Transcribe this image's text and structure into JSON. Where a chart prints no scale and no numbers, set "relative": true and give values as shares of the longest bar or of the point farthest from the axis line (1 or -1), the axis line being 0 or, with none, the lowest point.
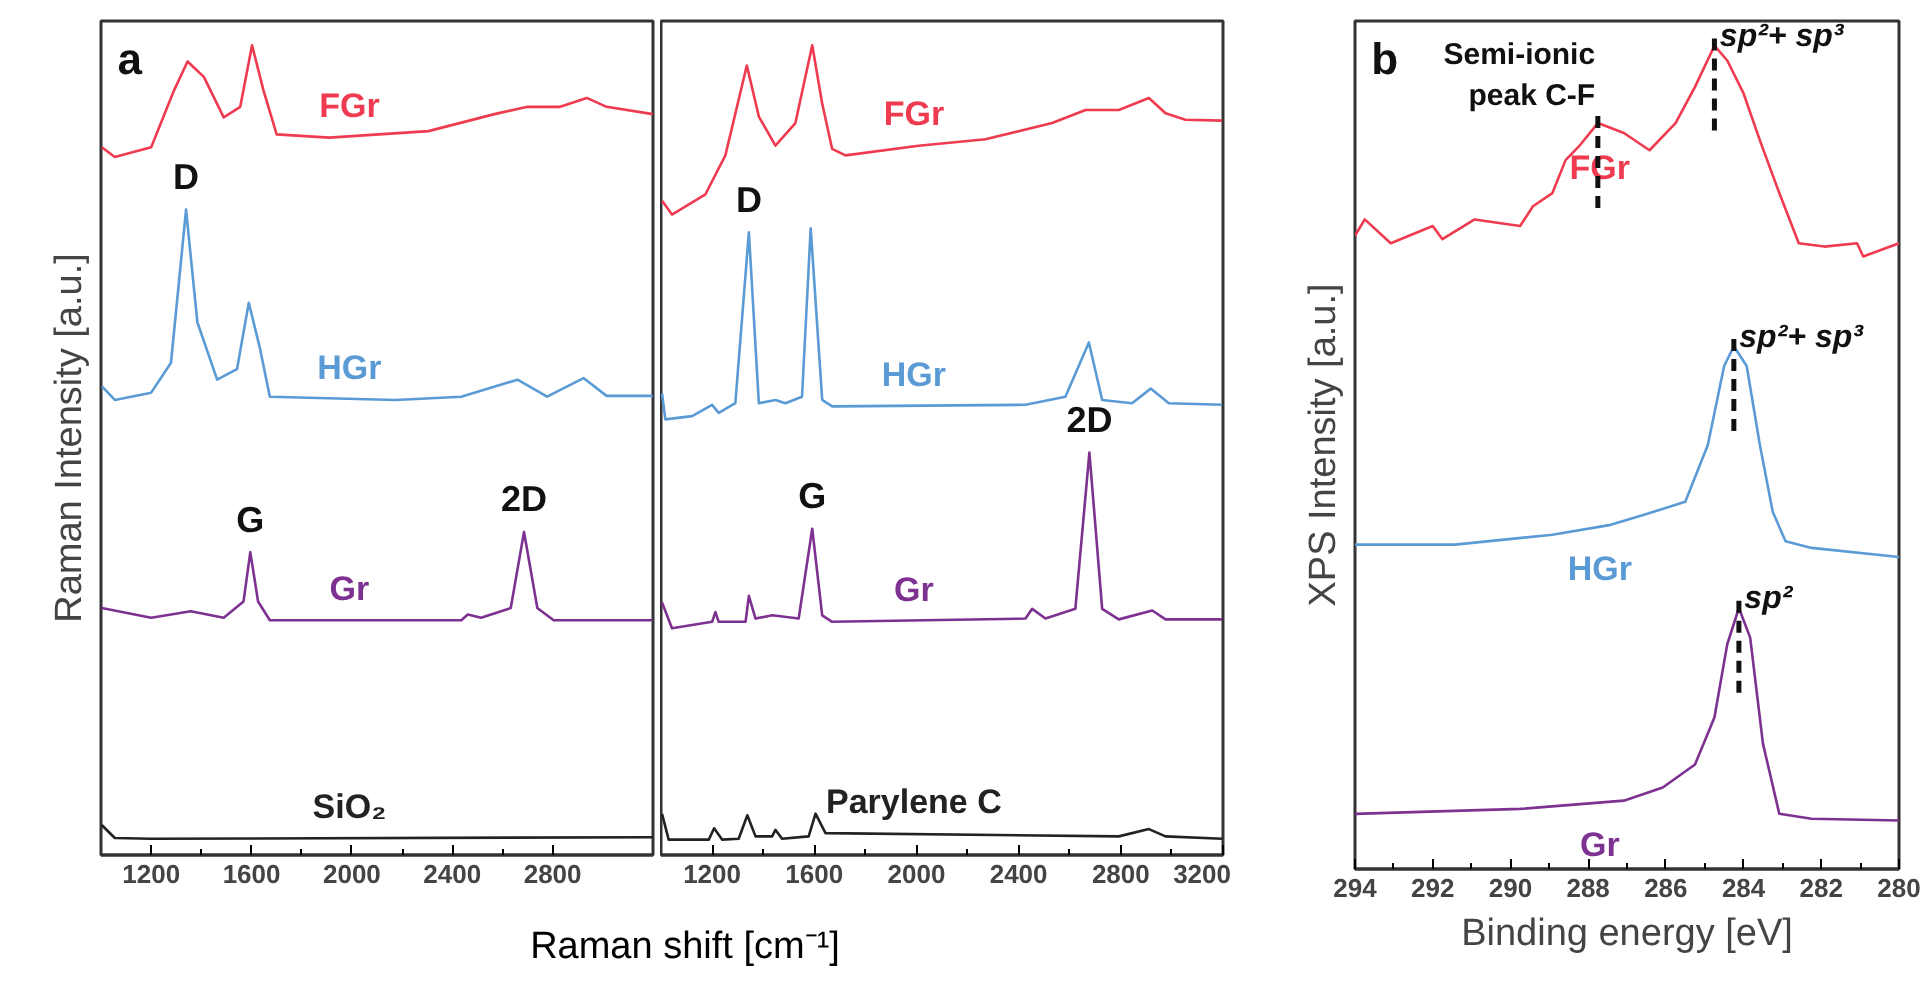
{
  "chart_data": [
    {
      "type": "line",
      "title": "a",
      "ylabel": "Raman Intensity [a.u.]",
      "xlabel": "Raman shift [cm⁻¹]",
      "relative": true,
      "tick_labels": "x",
      "grid": false,
      "xlim": [
        1000,
        3200
      ],
      "xticks": [
        1200,
        1600,
        2000,
        2400,
        2800
      ],
      "series": [
        {
          "name": "FGr",
          "color": "#ee3b4f",
          "x": [
            1003,
            1055,
            1200,
            1292,
            1345,
            1410,
            1489,
            1555,
            1602,
            1647,
            1700,
            1910,
            2305,
            2568,
            2700,
            2830,
            2936,
            3015,
            3199
          ],
          "values": [
            0.874,
            0.862,
            0.874,
            0.945,
            0.98,
            0.961,
            0.911,
            0.924,
            1.0,
            0.945,
            0.89,
            0.886,
            0.894,
            0.915,
            0.924,
            0.924,
            0.935,
            0.924,
            0.915
          ]
        },
        {
          "name": "HGr",
          "color": "#5b9bd5",
          "x": [
            1003,
            1055,
            1200,
            1279,
            1339,
            1384,
            1463,
            1542,
            1589,
            1634,
            1673,
            2173,
            2436,
            2660,
            2778,
            2923,
            3015,
            3199
          ],
          "values": [
            0.579,
            0.562,
            0.571,
            0.608,
            0.797,
            0.658,
            0.587,
            0.6,
            0.682,
            0.625,
            0.566,
            0.562,
            0.566,
            0.587,
            0.566,
            0.589,
            0.567,
            0.567
          ]
        },
        {
          "name": "Gr",
          "color": "#7d3191",
          "x": [
            1003,
            1200,
            1358,
            1489,
            1568,
            1595,
            1626,
            1673,
            2436,
            2462,
            2515,
            2633,
            2686,
            2739,
            2804,
            3199
          ],
          "values": [
            0.305,
            0.293,
            0.301,
            0.293,
            0.313,
            0.374,
            0.313,
            0.29,
            0.29,
            0.297,
            0.293,
            0.305,
            0.399,
            0.305,
            0.29,
            0.29
          ]
        },
        {
          "name": "SiO₂",
          "color": "#222222",
          "x": [
            1003,
            1055,
            1200,
            3199
          ],
          "values": [
            0.037,
            0.021,
            0.02,
            0.022
          ]
        }
      ],
      "annotations": [
        {
          "text": "D",
          "x": 1339,
          "y": 0.797
        },
        {
          "text": "G",
          "x": 1595,
          "y": 0.374
        },
        {
          "text": "2D",
          "x": 2686,
          "y": 0.399
        }
      ]
    },
    {
      "type": "line",
      "relative": true,
      "tick_labels": "x",
      "grid": false,
      "xlim": [
        1000,
        3200
      ],
      "xticks": [
        1200,
        1600,
        2000,
        2400,
        2800,
        3200
      ],
      "series": [
        {
          "name": "FGr",
          "color": "#ee3b4f",
          "x": [
            1004,
            1043,
            1174,
            1252,
            1336,
            1383,
            1448,
            1526,
            1592,
            1631,
            1670,
            1722,
            2009,
            2270,
            2531,
            2662,
            2792,
            2910,
            2975,
            3053,
            3197
          ],
          "values": [
            0.808,
            0.791,
            0.816,
            0.864,
            0.975,
            0.912,
            0.876,
            0.904,
            1.0,
            0.928,
            0.872,
            0.864,
            0.876,
            0.884,
            0.904,
            0.92,
            0.92,
            0.935,
            0.916,
            0.908,
            0.907
          ]
        },
        {
          "name": "HGr",
          "color": "#5b9bd5",
          "x": [
            1004,
            1017,
            1122,
            1200,
            1226,
            1291,
            1344,
            1383,
            1448,
            1487,
            1552,
            1586,
            1631,
            1670,
            2427,
            2583,
            2675,
            2727,
            2844,
            2917,
            2988,
            3197
          ],
          "values": [
            0.57,
            0.538,
            0.542,
            0.556,
            0.546,
            0.558,
            0.769,
            0.558,
            0.562,
            0.558,
            0.566,
            0.774,
            0.562,
            0.554,
            0.556,
            0.566,
            0.633,
            0.562,
            0.558,
            0.576,
            0.558,
            0.556
          ]
        },
        {
          "name": "Gr",
          "color": "#7d3191",
          "x": [
            1004,
            1043,
            1200,
            1213,
            1226,
            1331,
            1344,
            1370,
            1435,
            1539,
            1592,
            1631,
            1670,
            2427,
            2453,
            2505,
            2622,
            2677,
            2727,
            2792,
            2923,
            2975,
            3197
          ],
          "values": [
            0.312,
            0.28,
            0.288,
            0.3,
            0.288,
            0.288,
            0.32,
            0.292,
            0.296,
            0.292,
            0.403,
            0.296,
            0.288,
            0.292,
            0.304,
            0.292,
            0.304,
            0.497,
            0.304,
            0.291,
            0.302,
            0.291,
            0.291
          ]
        },
        {
          "name": "Parylene C",
          "color": "#222222",
          "x": [
            1004,
            1030,
            1187,
            1208,
            1239,
            1304,
            1338,
            1370,
            1435,
            1448,
            1474,
            1578,
            1605,
            1644,
            2792,
            2910,
            2975,
            3197
          ],
          "values": [
            0.051,
            0.019,
            0.019,
            0.033,
            0.019,
            0.02,
            0.049,
            0.023,
            0.023,
            0.031,
            0.02,
            0.023,
            0.051,
            0.027,
            0.023,
            0.032,
            0.023,
            0.02
          ]
        }
      ],
      "annotations": [
        {
          "text": "D",
          "x": 1344,
          "y": 0.769
        },
        {
          "text": "G",
          "x": 1592,
          "y": 0.403
        },
        {
          "text": "2D",
          "x": 2677,
          "y": 0.497
        }
      ]
    },
    {
      "type": "line",
      "title": "b",
      "ylabel": "XPS Intensity [a.u.]",
      "xlabel": "Binding energy [eV]",
      "relative": true,
      "tick_labels": "x",
      "grid": false,
      "xlim": [
        294,
        280
      ],
      "xticks": [
        294,
        292,
        290,
        288,
        286,
        284,
        282,
        280
      ],
      "series": [
        {
          "name": "FGr",
          "color": "#ee3b4f",
          "x": [
            294,
            293.75,
            293.08,
            292,
            291.75,
            290.92,
            289.75,
            289.42,
            288.92,
            288.58,
            288.25,
            287.75,
            287.08,
            286.42,
            285.75,
            285.25,
            284.75,
            284.42,
            284,
            283.58,
            283.08,
            282.58,
            281.92,
            281.08,
            280.92,
            280
          ],
          "values": [
            0.769,
            0.789,
            0.76,
            0.781,
            0.765,
            0.789,
            0.781,
            0.805,
            0.821,
            0.861,
            0.877,
            0.906,
            0.894,
            0.873,
            0.906,
            0.95,
            1.0,
            0.982,
            0.942,
            0.885,
            0.821,
            0.76,
            0.756,
            0.76,
            0.744,
            0.76
          ]
        },
        {
          "name": "HGr",
          "color": "#5b9bd5",
          "x": [
            294,
            291.42,
            288.92,
            287.42,
            286.58,
            285.5,
            284.92,
            284.5,
            284.25,
            283.92,
            283.58,
            283.25,
            282.92,
            282.25,
            280
          ],
          "values": [
            0.394,
            0.394,
            0.406,
            0.418,
            0.43,
            0.446,
            0.515,
            0.611,
            0.635,
            0.611,
            0.515,
            0.434,
            0.398,
            0.39,
            0.379
          ]
        },
        {
          "name": "Gr",
          "color": "#7d3191",
          "x": [
            294,
            289.75,
            287.08,
            286.08,
            285.25,
            284.75,
            284.42,
            284.12,
            283.83,
            283.5,
            283.08,
            282.25,
            280
          ],
          "values": [
            0.067,
            0.073,
            0.083,
            0.099,
            0.127,
            0.184,
            0.273,
            0.317,
            0.281,
            0.152,
            0.067,
            0.061,
            0.059
          ]
        }
      ],
      "annotations": [
        {
          "text": "Semi-ionic\npeak C-F",
          "x": 287.75,
          "y": 0.906
        },
        {
          "text": "sp²+ sp³",
          "x": 284.75,
          "y": 1.0
        },
        {
          "text": "sp²+ sp³",
          "x": 284.25,
          "y": 0.635
        },
        {
          "text": "sp²",
          "x": 284.12,
          "y": 0.317
        }
      ]
    }
  ]
}
